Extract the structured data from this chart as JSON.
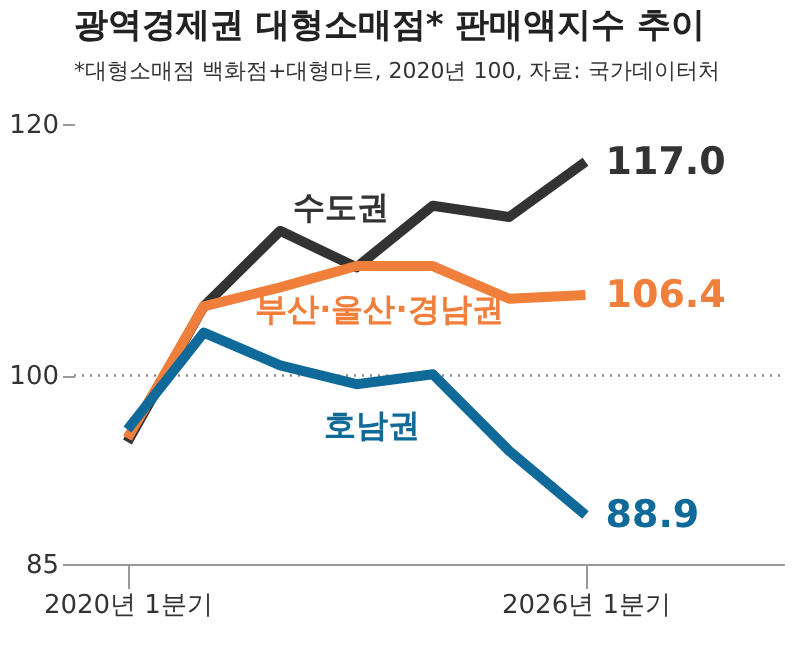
{
  "chart_data": {
    "type": "line",
    "title": "광역경제권 대형소매점* 판매액지수 추이",
    "subtitle": "*대형소매점  백화점+대형마트, 2020년 100, 자료: 국가데이터처",
    "categories": [
      "2020년 1분기",
      null,
      null,
      null,
      null,
      null,
      "2026년 1분기"
    ],
    "series": [
      {
        "name": "수도권",
        "color": "#333333",
        "values": [
          94.7,
          105.5,
          111.5,
          108.6,
          113.5,
          112.6,
          117.0
        ],
        "value_labels": [
          null,
          null,
          null,
          null,
          null,
          null,
          "117.0"
        ]
      },
      {
        "name": "부산·울산·경남권",
        "color": "#f07f3c",
        "values": [
          95.0,
          105.5,
          107.0,
          108.7,
          108.7,
          106.1,
          106.4
        ],
        "value_labels": [
          null,
          null,
          null,
          null,
          null,
          null,
          "106.4"
        ]
      },
      {
        "name": "호남권",
        "color": "#0f6a9a",
        "values": [
          95.7,
          103.4,
          100.8,
          99.3,
          100.1,
          94.0,
          88.9
        ],
        "value_labels": [
          null,
          null,
          null,
          null,
          null,
          null,
          "88.9"
        ]
      }
    ],
    "ylim": [
      85,
      120
    ],
    "yticks": [
      85,
      100,
      120
    ],
    "ref_lines": [
      {
        "axis": "y",
        "value": 100,
        "color": "#888888",
        "line_style": "dotted"
      }
    ],
    "grid": false,
    "legend": false,
    "marker": "none",
    "line_style": "solid"
  }
}
